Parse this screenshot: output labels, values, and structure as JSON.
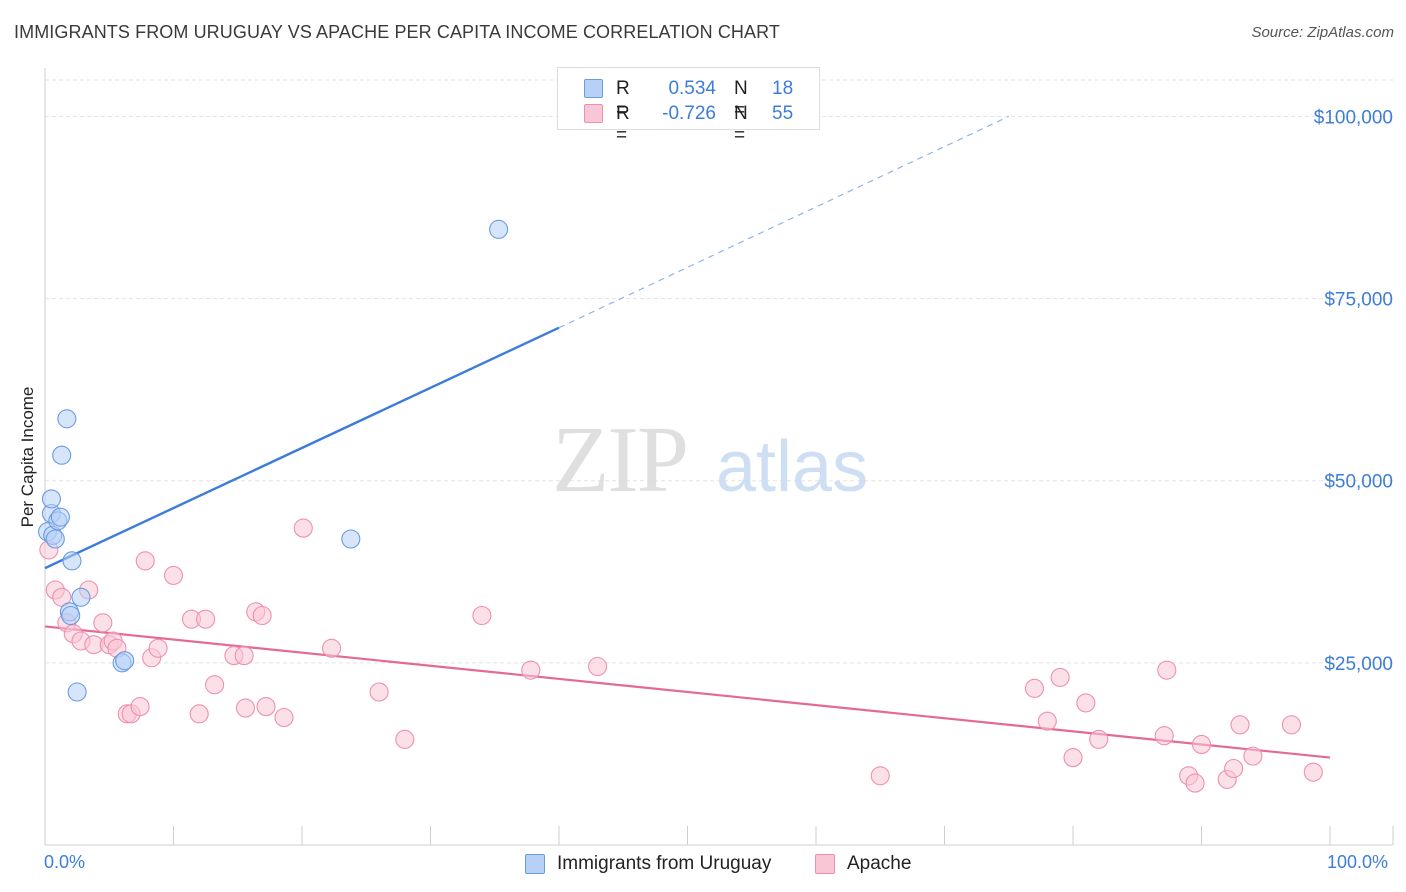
{
  "title": "IMMIGRANTS FROM URUGUAY VS APACHE PER CAPITA INCOME CORRELATION CHART",
  "source": "Source: ZipAtlas.com",
  "watermark": {
    "zip": "ZIP",
    "atlas": "atlas"
  },
  "legend": {
    "r_label": "R =",
    "n_label": "N =",
    "rows": [
      {
        "r": "0.534",
        "n": "18",
        "fill": "#b7d0f5",
        "stroke": "#6a9be0"
      },
      {
        "r": "-0.726",
        "n": "55",
        "fill": "#f9c6d6",
        "stroke": "#ee90ae"
      }
    ]
  },
  "bottom_legend": [
    {
      "label": "Immigrants from Uruguay",
      "fill": "#b7d0f5",
      "stroke": "#6a9be0"
    },
    {
      "label": "Apache",
      "fill": "#f9c6d6",
      "stroke": "#ee90ae"
    }
  ],
  "x_axis": {
    "min_label": "0.0%",
    "max_label": "100.0%"
  },
  "chart_data": {
    "type": "scatter",
    "title": "IMMIGRANTS FROM URUGUAY VS APACHE PER CAPITA INCOME CORRELATION CHART",
    "xlabel": "",
    "ylabel": "Per Capita Income",
    "xlim": [
      0,
      100
    ],
    "ylim": [
      0,
      105000
    ],
    "y_ticks": [
      25000,
      50000,
      75000,
      100000
    ],
    "y_tick_labels": [
      "$25,000",
      "$50,000",
      "$75,000",
      "$100,000"
    ],
    "grid": true,
    "series": [
      {
        "name": "Immigrants from Uruguay",
        "color": "#3d7dd8",
        "fill": "#b7d0f5",
        "points": [
          [
            0.2,
            43000
          ],
          [
            0.5,
            45500
          ],
          [
            0.5,
            47500
          ],
          [
            0.6,
            42500
          ],
          [
            0.8,
            42000
          ],
          [
            1.0,
            44500
          ],
          [
            1.2,
            45000
          ],
          [
            1.3,
            53500
          ],
          [
            1.7,
            58500
          ],
          [
            1.9,
            32000
          ],
          [
            2.0,
            31500
          ],
          [
            2.1,
            39000
          ],
          [
            2.5,
            21000
          ],
          [
            2.8,
            34000
          ],
          [
            6.0,
            25000
          ],
          [
            6.2,
            25300
          ],
          [
            23.8,
            42000
          ],
          [
            35.3,
            84500
          ]
        ],
        "trend": {
          "x0": 0,
          "y0": 38000,
          "x1": 40,
          "y1": 71000,
          "x_dash_end": 75,
          "y_dash_end": 100000
        }
      },
      {
        "name": "Apache",
        "color": "#e46a96",
        "fill": "#f9c6d6",
        "points": [
          [
            0.3,
            40500
          ],
          [
            0.8,
            35000
          ],
          [
            1.3,
            34000
          ],
          [
            1.7,
            30500
          ],
          [
            2.2,
            29000
          ],
          [
            2.8,
            28000
          ],
          [
            3.4,
            35000
          ],
          [
            3.8,
            27500
          ],
          [
            4.5,
            30500
          ],
          [
            5.0,
            27500
          ],
          [
            5.3,
            28000
          ],
          [
            5.6,
            27000
          ],
          [
            6.4,
            18000
          ],
          [
            6.7,
            18000
          ],
          [
            7.4,
            19000
          ],
          [
            7.8,
            39000
          ],
          [
            8.3,
            25700
          ],
          [
            8.8,
            27000
          ],
          [
            10.0,
            37000
          ],
          [
            11.4,
            31000
          ],
          [
            12.0,
            18000
          ],
          [
            12.5,
            31000
          ],
          [
            13.2,
            22000
          ],
          [
            14.7,
            26000
          ],
          [
            15.5,
            26000
          ],
          [
            15.6,
            18800
          ],
          [
            16.4,
            32000
          ],
          [
            16.9,
            31500
          ],
          [
            17.2,
            19000
          ],
          [
            18.6,
            17500
          ],
          [
            20.1,
            43500
          ],
          [
            22.3,
            27000
          ],
          [
            26.0,
            21000
          ],
          [
            28.0,
            14500
          ],
          [
            34.0,
            31500
          ],
          [
            37.8,
            24000
          ],
          [
            43.0,
            24500
          ],
          [
            65.0,
            9500
          ],
          [
            77.0,
            21500
          ],
          [
            78.0,
            17000
          ],
          [
            79.0,
            23000
          ],
          [
            80.0,
            12000
          ],
          [
            81.0,
            19500
          ],
          [
            82.0,
            14500
          ],
          [
            87.3,
            24000
          ],
          [
            87.1,
            15000
          ],
          [
            89.0,
            9500
          ],
          [
            89.5,
            8500
          ],
          [
            90.0,
            13800
          ],
          [
            92.0,
            9000
          ],
          [
            92.5,
            10500
          ],
          [
            93.0,
            16500
          ],
          [
            94.0,
            12200
          ],
          [
            97.0,
            16500
          ],
          [
            98.7,
            10000
          ]
        ],
        "trend": {
          "x0": 0,
          "y0": 30000,
          "x1": 100,
          "y1": 12000
        }
      }
    ]
  }
}
